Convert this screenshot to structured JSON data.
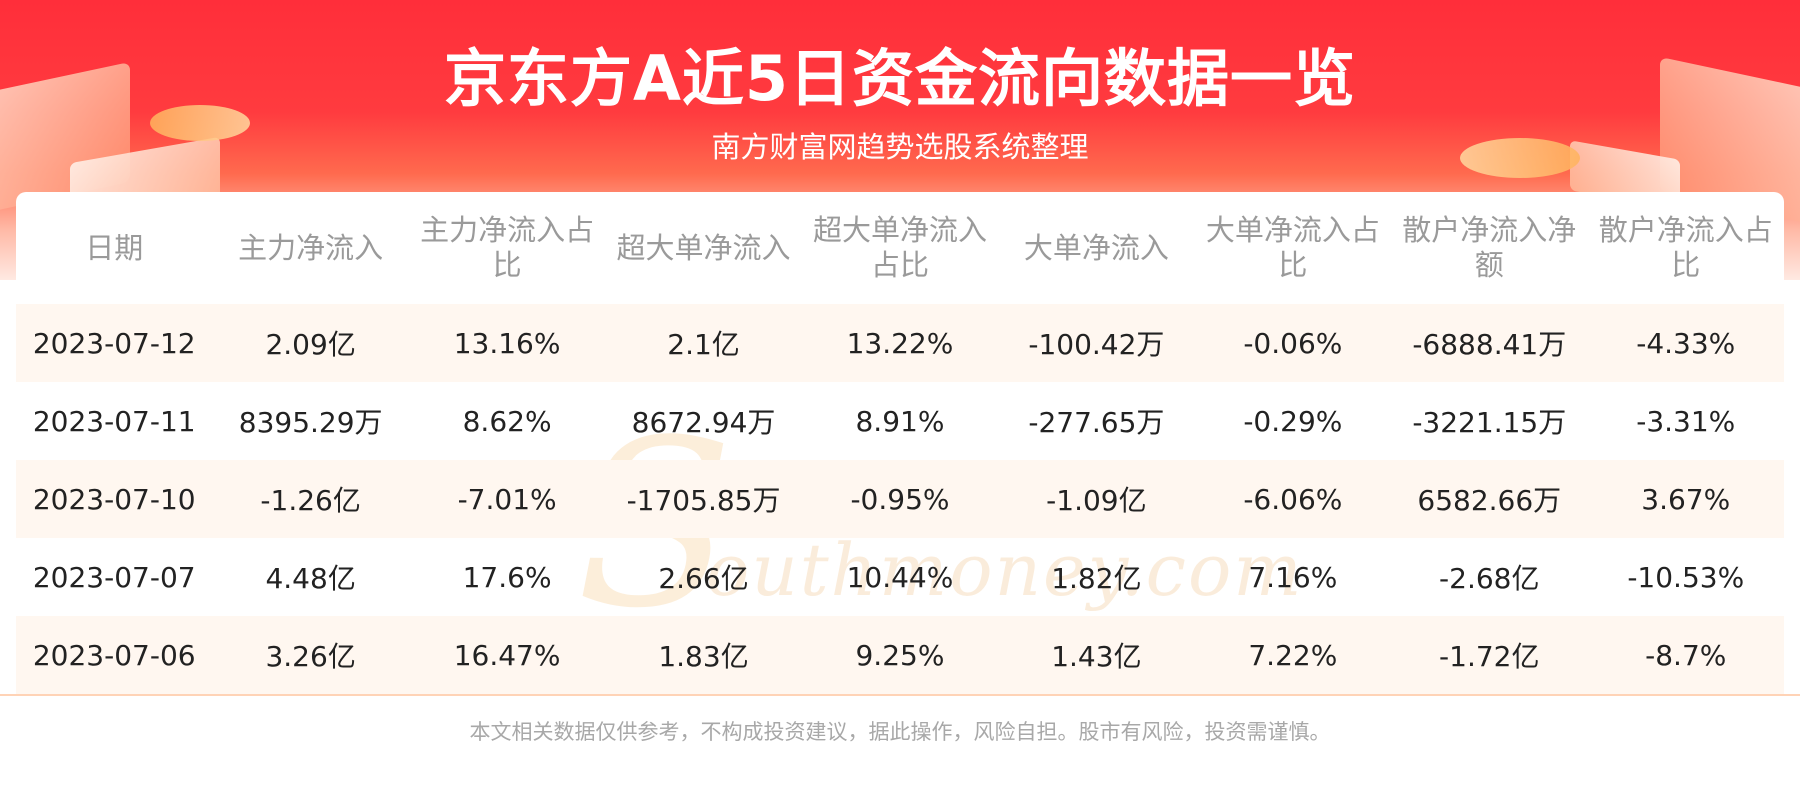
{
  "header": {
    "title": "京东方A近5日资金流向数据一览",
    "subtitle": "南方财富网趋势选股系统整理"
  },
  "watermark": {
    "cn": "南方财富网",
    "en": "outhmoney.com",
    "letter": "S"
  },
  "table": {
    "columns": [
      "日期",
      "主力净流入",
      "主力净流入占比",
      "超大单净流入",
      "超大单净流入占比",
      "大单净流入",
      "大单净流入占比",
      "散户净流入净额",
      "散户净流入占比"
    ],
    "rows": [
      [
        "2023-07-12",
        "2.09亿",
        "13.16%",
        "2.1亿",
        "13.22%",
        "-100.42万",
        "-0.06%",
        "-6888.41万",
        "-4.33%"
      ],
      [
        "2023-07-11",
        "8395.29万",
        "8.62%",
        "8672.94万",
        "8.91%",
        "-277.65万",
        "-0.29%",
        "-3221.15万",
        "-3.31%"
      ],
      [
        "2023-07-10",
        "-1.26亿",
        "-7.01%",
        "-1705.85万",
        "-0.95%",
        "-1.09亿",
        "-6.06%",
        "6582.66万",
        "3.67%"
      ],
      [
        "2023-07-07",
        "4.48亿",
        "17.6%",
        "2.66亿",
        "10.44%",
        "1.82亿",
        "7.16%",
        "-2.68亿",
        "-10.53%"
      ],
      [
        "2023-07-06",
        "3.26亿",
        "16.47%",
        "1.83亿",
        "9.25%",
        "1.43亿",
        "7.22%",
        "-1.72亿",
        "-8.7%"
      ]
    ]
  },
  "footer": {
    "disclaimer": "本文相关数据仅供参考，不构成投资建议，据此操作，风险自担。股市有风险，投资需谨慎。"
  },
  "colors": {
    "banner_red": "#ff2e3a",
    "row_tint": "#fff7f0",
    "header_text": "#9a9a9a",
    "footer_text": "#a8a8a8"
  }
}
